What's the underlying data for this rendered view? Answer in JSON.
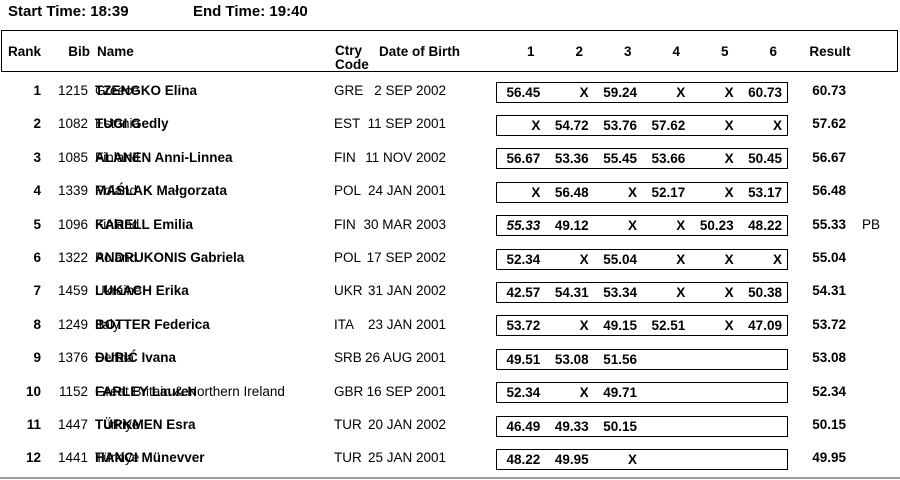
{
  "titlebar": {
    "start_time": "Start Time: 18:39",
    "end_time": "End Time: 19:40"
  },
  "table": {
    "columns": {
      "rank": "Rank",
      "bib": "Bib",
      "name": "Name",
      "ctry_line1": "Ctry",
      "ctry_line2": "Code",
      "dob": "Date of Birth",
      "attempts": [
        "1",
        "2",
        "3",
        "4",
        "5",
        "6"
      ],
      "result": "Result"
    },
    "rows": [
      {
        "rank": "1",
        "bib": "1215",
        "name": "TZENGKO Elina",
        "country": "Greece",
        "ctry_code": "GRE",
        "dob": "2 SEP 2002",
        "attempts": [
          "56.45",
          "X",
          "59.24",
          "X",
          "X",
          "60.73"
        ],
        "result": "60.73",
        "note": "",
        "italic_attempts": []
      },
      {
        "rank": "2",
        "bib": "1082",
        "name": "TUGI Gedly",
        "country": "Estonia",
        "ctry_code": "EST",
        "dob": "11 SEP 2001",
        "attempts": [
          "X",
          "54.72",
          "53.76",
          "57.62",
          "X",
          "X"
        ],
        "result": "57.62",
        "note": "",
        "italic_attempts": []
      },
      {
        "rank": "3",
        "bib": "1085",
        "name": "ALANEN Anni-Linnea",
        "country": "Finland",
        "ctry_code": "FIN",
        "dob": "11 NOV 2002",
        "attempts": [
          "56.67",
          "53.36",
          "55.45",
          "53.66",
          "X",
          "50.45"
        ],
        "result": "56.67",
        "note": "",
        "italic_attempts": []
      },
      {
        "rank": "4",
        "bib": "1339",
        "name": "MAŚLAK Małgorzata",
        "country": "Poland",
        "ctry_code": "POL",
        "dob": "24 JAN 2001",
        "attempts": [
          "X",
          "56.48",
          "X",
          "52.17",
          "X",
          "53.17"
        ],
        "result": "56.48",
        "note": "",
        "italic_attempts": []
      },
      {
        "rank": "5",
        "bib": "1096",
        "name": "KARELL Emilia",
        "country": "Finland",
        "ctry_code": "FIN",
        "dob": "30 MAR 2003",
        "attempts": [
          "55.33",
          "49.12",
          "X",
          "X",
          "50.23",
          "48.22"
        ],
        "result": "55.33",
        "note": "PB",
        "italic_attempts": [
          0
        ]
      },
      {
        "rank": "6",
        "bib": "1322",
        "name": "ANDRUKONIS Gabriela",
        "country": "Poland",
        "ctry_code": "POL",
        "dob": "17 SEP 2002",
        "attempts": [
          "52.34",
          "X",
          "55.04",
          "X",
          "X",
          "X"
        ],
        "result": "55.04",
        "note": "",
        "italic_attempts": []
      },
      {
        "rank": "7",
        "bib": "1459",
        "name": "LUKACH Erika",
        "country": "Ukraine",
        "ctry_code": "UKR",
        "dob": "31 JAN 2002",
        "attempts": [
          "42.57",
          "54.31",
          "53.34",
          "X",
          "X",
          "50.38"
        ],
        "result": "54.31",
        "note": "",
        "italic_attempts": []
      },
      {
        "rank": "8",
        "bib": "1249",
        "name": "BOTTER Federica",
        "country": "Italy",
        "ctry_code": "ITA",
        "dob": "23 JAN 2001",
        "attempts": [
          "53.72",
          "X",
          "49.15",
          "52.51",
          "X",
          "47.09"
        ],
        "result": "53.72",
        "note": "",
        "italic_attempts": []
      },
      {
        "rank": "9",
        "bib": "1376",
        "name": "ĐURIĆ Ivana",
        "country": "Serbia",
        "ctry_code": "SRB",
        "dob": "26 AUG 2001",
        "attempts": [
          "49.51",
          "53.08",
          "51.56",
          "",
          "",
          ""
        ],
        "result": "53.08",
        "note": "",
        "italic_attempts": []
      },
      {
        "rank": "10",
        "bib": "1152",
        "name": "FARLEY Lauren",
        "country": "Great Britain & Northern Ireland",
        "ctry_code": "GBR",
        "dob": "16 SEP 2001",
        "attempts": [
          "52.34",
          "X",
          "49.71",
          "",
          "",
          ""
        ],
        "result": "52.34",
        "note": "",
        "italic_attempts": []
      },
      {
        "rank": "11",
        "bib": "1447",
        "name": "TÜRKMEN Esra",
        "country": "Türkiye",
        "ctry_code": "TUR",
        "dob": "20 JAN 2002",
        "attempts": [
          "46.49",
          "49.33",
          "50.15",
          "",
          "",
          ""
        ],
        "result": "50.15",
        "note": "",
        "italic_attempts": []
      },
      {
        "rank": "12",
        "bib": "1441",
        "name": "HANCI Münevver",
        "country": "Türkiye",
        "ctry_code": "TUR",
        "dob": "25 JAN 2001",
        "attempts": [
          "48.22",
          "49.95",
          "X",
          "",
          "",
          ""
        ],
        "result": "49.95",
        "note": "",
        "italic_attempts": []
      }
    ]
  },
  "colors": {
    "text": "#000000",
    "box_border": "#000000",
    "bottom_rule": "#9a9a9a"
  }
}
